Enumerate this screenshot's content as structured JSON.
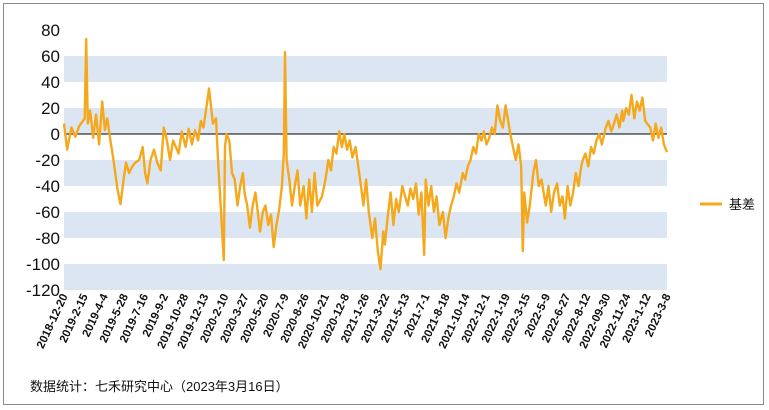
{
  "chart_data": {
    "type": "line",
    "title": "",
    "xlabel": "",
    "ylabel": "",
    "ylim": [
      -120,
      80
    ],
    "yticks": [
      80,
      60,
      40,
      20,
      0,
      -20,
      -40,
      -60,
      -80,
      -100,
      -120
    ],
    "x_start": "2018-12-20",
    "x_end": "2023-03-16",
    "xtick_labels": [
      "2018-12-20",
      "2019-2-15",
      "2019-4-4",
      "2019-5-28",
      "2019-7-16",
      "2019-9-2",
      "2019-10-28",
      "2019-12-13",
      "2020-2-10",
      "2020-3-27",
      "2020-5-20",
      "2020-7-9",
      "2020-8-26",
      "2020-10-21",
      "2020-12-8",
      "2021-1-26",
      "2021-3-22",
      "2021-5-13",
      "2021-7-1",
      "2021-8-18",
      "2021-10-14",
      "2022-12-1",
      "2022-1-19",
      "2022-3-15",
      "2022-5-9",
      "2022-6-27",
      "2022-8-12",
      "2022-09-30",
      "2022-11-24",
      "2023-1-12",
      "2023-3-8"
    ],
    "grid": "alternating horizontal bands",
    "band_color": "#dce6f2",
    "legend_position": "right",
    "series": [
      {
        "name": "基差",
        "color": "#f5a81c",
        "points": [
          [
            "2018-12-20",
            8
          ],
          [
            "2018-12-28",
            -12
          ],
          [
            "2019-01-08",
            5
          ],
          [
            "2019-01-18",
            -2
          ],
          [
            "2019-01-28",
            6
          ],
          [
            "2019-02-11",
            12
          ],
          [
            "2019-02-15",
            73
          ],
          [
            "2019-02-19",
            8
          ],
          [
            "2019-02-25",
            18
          ],
          [
            "2019-03-05",
            -3
          ],
          [
            "2019-03-12",
            15
          ],
          [
            "2019-03-20",
            -8
          ],
          [
            "2019-03-28",
            25
          ],
          [
            "2019-04-04",
            3
          ],
          [
            "2019-04-10",
            12
          ],
          [
            "2019-04-18",
            -5
          ],
          [
            "2019-04-25",
            -18
          ],
          [
            "2019-05-06",
            -42
          ],
          [
            "2019-05-14",
            -54
          ],
          [
            "2019-05-22",
            -35
          ],
          [
            "2019-05-28",
            -22
          ],
          [
            "2019-06-05",
            -30
          ],
          [
            "2019-06-13",
            -25
          ],
          [
            "2019-06-21",
            -22
          ],
          [
            "2019-07-01",
            -20
          ],
          [
            "2019-07-10",
            -10
          ],
          [
            "2019-07-16",
            -30
          ],
          [
            "2019-07-22",
            -38
          ],
          [
            "2019-07-30",
            -20
          ],
          [
            "2019-08-08",
            -12
          ],
          [
            "2019-08-16",
            -22
          ],
          [
            "2019-08-25",
            -28
          ],
          [
            "2019-09-02",
            5
          ],
          [
            "2019-09-10",
            -5
          ],
          [
            "2019-09-18",
            -20
          ],
          [
            "2019-09-26",
            -5
          ],
          [
            "2019-10-10",
            -15
          ],
          [
            "2019-10-18",
            2
          ],
          [
            "2019-10-28",
            -10
          ],
          [
            "2019-11-05",
            4
          ],
          [
            "2019-11-13",
            -8
          ],
          [
            "2019-11-21",
            3
          ],
          [
            "2019-11-29",
            -5
          ],
          [
            "2019-12-06",
            10
          ],
          [
            "2019-12-13",
            5
          ],
          [
            "2019-12-20",
            20
          ],
          [
            "2019-12-27",
            35
          ],
          [
            "2020-01-06",
            8
          ],
          [
            "2020-01-14",
            12
          ],
          [
            "2020-01-20",
            -25
          ],
          [
            "2020-02-03",
            -97
          ],
          [
            "2020-02-06",
            -10
          ],
          [
            "2020-02-10",
            0
          ],
          [
            "2020-02-17",
            -5
          ],
          [
            "2020-02-24",
            -30
          ],
          [
            "2020-03-02",
            -35
          ],
          [
            "2020-03-09",
            -55
          ],
          [
            "2020-03-16",
            -40
          ],
          [
            "2020-03-23",
            -30
          ],
          [
            "2020-03-27",
            -45
          ],
          [
            "2020-04-03",
            -55
          ],
          [
            "2020-04-10",
            -72
          ],
          [
            "2020-04-17",
            -55
          ],
          [
            "2020-04-24",
            -45
          ],
          [
            "2020-05-06",
            -75
          ],
          [
            "2020-05-13",
            -60
          ],
          [
            "2020-05-20",
            -55
          ],
          [
            "2020-05-27",
            -70
          ],
          [
            "2020-06-03",
            -62
          ],
          [
            "2020-06-10",
            -87
          ],
          [
            "2020-06-17",
            -70
          ],
          [
            "2020-06-24",
            -58
          ],
          [
            "2020-07-01",
            -40
          ],
          [
            "2020-07-06",
            -15
          ],
          [
            "2020-07-09",
            63
          ],
          [
            "2020-07-13",
            -20
          ],
          [
            "2020-07-20",
            -35
          ],
          [
            "2020-07-27",
            -55
          ],
          [
            "2020-08-03",
            -40
          ],
          [
            "2020-08-10",
            -28
          ],
          [
            "2020-08-17",
            -55
          ],
          [
            "2020-08-26",
            -40
          ],
          [
            "2020-09-02",
            -65
          ],
          [
            "2020-09-09",
            -35
          ],
          [
            "2020-09-16",
            -60
          ],
          [
            "2020-09-23",
            -30
          ],
          [
            "2020-09-30",
            -55
          ],
          [
            "2020-10-12",
            -48
          ],
          [
            "2020-10-21",
            -35
          ],
          [
            "2020-10-28",
            -20
          ],
          [
            "2020-11-04",
            -28
          ],
          [
            "2020-11-11",
            -10
          ],
          [
            "2020-11-18",
            -15
          ],
          [
            "2020-11-25",
            2
          ],
          [
            "2020-12-02",
            -10
          ],
          [
            "2020-12-08",
            0
          ],
          [
            "2020-12-15",
            -12
          ],
          [
            "2020-12-22",
            -5
          ],
          [
            "2020-12-29",
            -18
          ],
          [
            "2021-01-06",
            -10
          ],
          [
            "2021-01-13",
            -25
          ],
          [
            "2021-01-20",
            -40
          ],
          [
            "2021-01-26",
            -55
          ],
          [
            "2021-02-02",
            -35
          ],
          [
            "2021-02-09",
            -60
          ],
          [
            "2021-02-18",
            -80
          ],
          [
            "2021-02-25",
            -65
          ],
          [
            "2021-03-04",
            -90
          ],
          [
            "2021-03-11",
            -104
          ],
          [
            "2021-03-18",
            -75
          ],
          [
            "2021-03-22",
            -85
          ],
          [
            "2021-03-29",
            -65
          ],
          [
            "2021-04-06",
            -45
          ],
          [
            "2021-04-13",
            -70
          ],
          [
            "2021-04-20",
            -50
          ],
          [
            "2021-04-27",
            -60
          ],
          [
            "2021-05-06",
            -40
          ],
          [
            "2021-05-13",
            -48
          ],
          [
            "2021-05-20",
            -55
          ],
          [
            "2021-05-27",
            -42
          ],
          [
            "2021-06-03",
            -50
          ],
          [
            "2021-06-10",
            -38
          ],
          [
            "2021-06-17",
            -62
          ],
          [
            "2021-06-24",
            -45
          ],
          [
            "2021-07-01",
            -93
          ],
          [
            "2021-07-05",
            -35
          ],
          [
            "2021-07-12",
            -55
          ],
          [
            "2021-07-19",
            -40
          ],
          [
            "2021-07-26",
            -60
          ],
          [
            "2021-08-02",
            -48
          ],
          [
            "2021-08-09",
            -70
          ],
          [
            "2021-08-18",
            -60
          ],
          [
            "2021-08-25",
            -80
          ],
          [
            "2021-09-01",
            -65
          ],
          [
            "2021-09-08",
            -55
          ],
          [
            "2021-09-15",
            -48
          ],
          [
            "2021-09-22",
            -38
          ],
          [
            "2021-09-29",
            -45
          ],
          [
            "2021-10-08",
            -30
          ],
          [
            "2021-10-14",
            -35
          ],
          [
            "2021-10-21",
            -25
          ],
          [
            "2021-10-28",
            -20
          ],
          [
            "2021-11-04",
            -10
          ],
          [
            "2021-11-11",
            -15
          ],
          [
            "2021-11-18",
            0
          ],
          [
            "2021-11-25",
            -5
          ],
          [
            "2021-12-01",
            2
          ],
          [
            "2021-12-08",
            -8
          ],
          [
            "2021-12-15",
            -3
          ],
          [
            "2021-12-22",
            5
          ],
          [
            "2021-12-29",
            0
          ],
          [
            "2022-01-05",
            22
          ],
          [
            "2022-01-12",
            10
          ],
          [
            "2022-01-19",
            5
          ],
          [
            "2022-01-26",
            22
          ],
          [
            "2022-02-07",
            0
          ],
          [
            "2022-02-14",
            -10
          ],
          [
            "2022-02-21",
            -20
          ],
          [
            "2022-02-28",
            -8
          ],
          [
            "2022-03-07",
            -25
          ],
          [
            "2022-03-11",
            -90
          ],
          [
            "2022-03-15",
            -45
          ],
          [
            "2022-03-22",
            -68
          ],
          [
            "2022-03-29",
            -55
          ],
          [
            "2022-04-07",
            -30
          ],
          [
            "2022-04-14",
            -20
          ],
          [
            "2022-04-21",
            -40
          ],
          [
            "2022-04-28",
            -35
          ],
          [
            "2022-05-09",
            -55
          ],
          [
            "2022-05-16",
            -40
          ],
          [
            "2022-05-23",
            -60
          ],
          [
            "2022-05-30",
            -45
          ],
          [
            "2022-06-07",
            -38
          ],
          [
            "2022-06-14",
            -55
          ],
          [
            "2022-06-21",
            -48
          ],
          [
            "2022-06-27",
            -65
          ],
          [
            "2022-07-04",
            -40
          ],
          [
            "2022-07-11",
            -55
          ],
          [
            "2022-07-18",
            -45
          ],
          [
            "2022-07-25",
            -30
          ],
          [
            "2022-08-01",
            -40
          ],
          [
            "2022-08-08",
            -25
          ],
          [
            "2022-08-12",
            -20
          ],
          [
            "2022-08-19",
            -15
          ],
          [
            "2022-08-26",
            -25
          ],
          [
            "2022-09-02",
            -10
          ],
          [
            "2022-09-09",
            -15
          ],
          [
            "2022-09-16",
            -5
          ],
          [
            "2022-09-23",
            0
          ],
          [
            "2022-09-30",
            -8
          ],
          [
            "2022-10-10",
            5
          ],
          [
            "2022-10-17",
            10
          ],
          [
            "2022-10-24",
            2
          ],
          [
            "2022-10-31",
            8
          ],
          [
            "2022-11-07",
            15
          ],
          [
            "2022-11-14",
            5
          ],
          [
            "2022-11-21",
            18
          ],
          [
            "2022-11-24",
            10
          ],
          [
            "2022-12-01",
            20
          ],
          [
            "2022-12-08",
            15
          ],
          [
            "2022-12-15",
            30
          ],
          [
            "2022-12-22",
            12
          ],
          [
            "2022-12-29",
            25
          ],
          [
            "2023-01-05",
            18
          ],
          [
            "2023-01-12",
            28
          ],
          [
            "2023-01-19",
            10
          ],
          [
            "2023-02-01",
            5
          ],
          [
            "2023-02-08",
            -5
          ],
          [
            "2023-02-15",
            8
          ],
          [
            "2023-02-22",
            -3
          ],
          [
            "2023-03-01",
            5
          ],
          [
            "2023-03-08",
            -8
          ],
          [
            "2023-03-16",
            -14
          ]
        ]
      }
    ]
  },
  "source": "数据统计：七禾研究中心（2023年3月16日）"
}
